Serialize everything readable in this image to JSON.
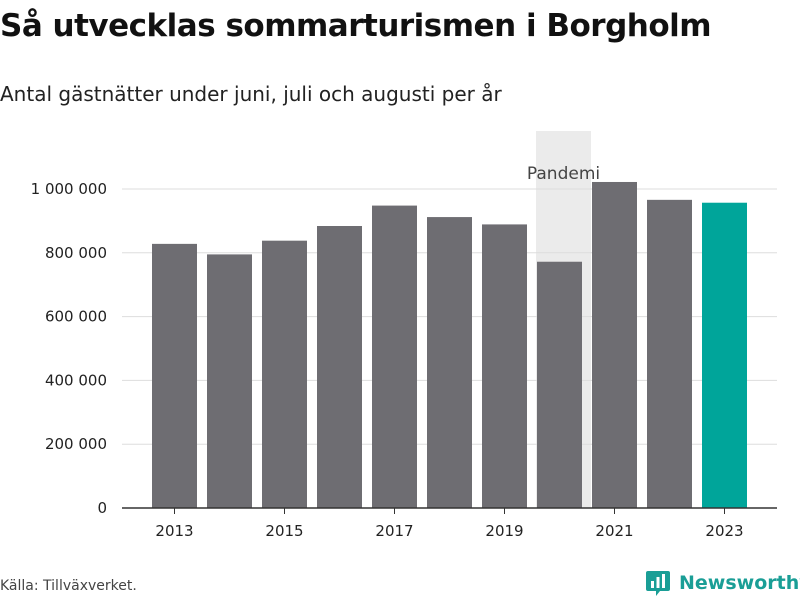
{
  "title": "Så utvecklas sommarturismen i Borgholm",
  "subtitle": "Antal gästnätter under juni, juli och augusti per år",
  "source": "Källa: Tillväxverket.",
  "brand": {
    "name": "Newsworthy",
    "icon": "newsworthy-logo-icon",
    "color": "#1a9e96"
  },
  "chart_data": {
    "type": "bar",
    "categories": [
      "2013",
      "2014",
      "2015",
      "2016",
      "2017",
      "2018",
      "2019",
      "2020",
      "2021",
      "2022",
      "2023"
    ],
    "values": [
      828000,
      795000,
      838000,
      884000,
      948000,
      912000,
      889000,
      772000,
      1022000,
      966000,
      957000
    ],
    "x_tick_labels": [
      "2013",
      "2015",
      "2017",
      "2019",
      "2021",
      "2023"
    ],
    "y_ticks": [
      0,
      200000,
      400000,
      600000,
      800000,
      1000000
    ],
    "y_tick_labels": [
      "0",
      "200 000",
      "400 000",
      "600 000",
      "800 000",
      "1 000 000"
    ],
    "ylim": [
      0,
      1000000
    ],
    "grid": true,
    "colors": {
      "bar": "#6e6d72",
      "highlight": "#00a59a",
      "shade": "#ebebeb",
      "grid": "#dddddd",
      "axis": "#333333"
    },
    "highlight_category": "2023",
    "annotation": {
      "label": "Pandemi",
      "category": "2020"
    }
  }
}
